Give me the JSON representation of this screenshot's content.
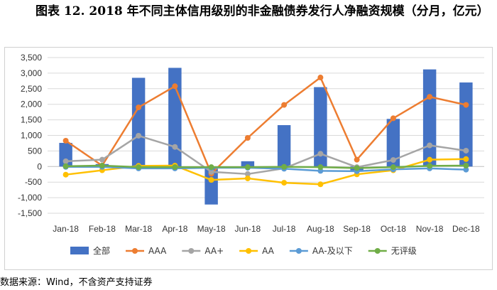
{
  "caption": "图表 12. 2018 年不同主体信用级别的非金融债券发行人净融资规模（分月，亿元）",
  "source": "数据来源：Wind，不含资产支持证券",
  "chart_data": {
    "type": "bar",
    "title": "",
    "xlabel": "",
    "ylabel": "",
    "categories": [
      "Jan-18",
      "Feb-18",
      "Mar-18",
      "Apr-18",
      "May-18",
      "Jun-18",
      "Jul-18",
      "Aug-18",
      "Sep-18",
      "Oct-18",
      "Nov-18",
      "Dec-18"
    ],
    "ylim": [
      -1500,
      3500
    ],
    "yticks": [
      3500,
      3000,
      2500,
      2000,
      1500,
      1000,
      500,
      0,
      -500,
      -1000,
      -1500
    ],
    "ytick_labels": [
      "3,500",
      "3,000",
      "2,500",
      "2,000",
      "1,500",
      "1,000",
      "500",
      "0",
      "-500",
      "-1,000",
      "-1,500"
    ],
    "grid": true,
    "legend_position": "bottom",
    "series": [
      {
        "name": "全部",
        "kind": "bar",
        "color": "#4472C4",
        "values": [
          760,
          80,
          2850,
          3170,
          -1220,
          170,
          1330,
          2550,
          -130,
          1530,
          3120,
          2700
        ]
      },
      {
        "name": "AAA",
        "kind": "line",
        "color": "#ED7D31",
        "values": [
          830,
          30,
          1900,
          2580,
          -230,
          920,
          1980,
          2860,
          220,
          1550,
          2240,
          1980
        ]
      },
      {
        "name": "AA+",
        "kind": "line",
        "color": "#A5A5A5",
        "values": [
          170,
          220,
          990,
          630,
          -170,
          -240,
          -60,
          410,
          -20,
          210,
          680,
          510
        ]
      },
      {
        "name": "AA",
        "kind": "line",
        "color": "#FFC000",
        "values": [
          -260,
          -120,
          20,
          30,
          -430,
          -380,
          -520,
          -570,
          -250,
          -120,
          220,
          240
        ]
      },
      {
        "name": "AA-及以下",
        "kind": "line",
        "color": "#5B9BD5",
        "values": [
          -10,
          -10,
          -60,
          -60,
          -40,
          -40,
          -70,
          -140,
          -150,
          -90,
          -60,
          -100
        ]
      },
      {
        "name": "无评级",
        "kind": "line",
        "color": "#70AD47",
        "values": [
          10,
          30,
          -20,
          -20,
          -20,
          -20,
          -10,
          -20,
          -50,
          -20,
          20,
          30
        ]
      }
    ]
  }
}
